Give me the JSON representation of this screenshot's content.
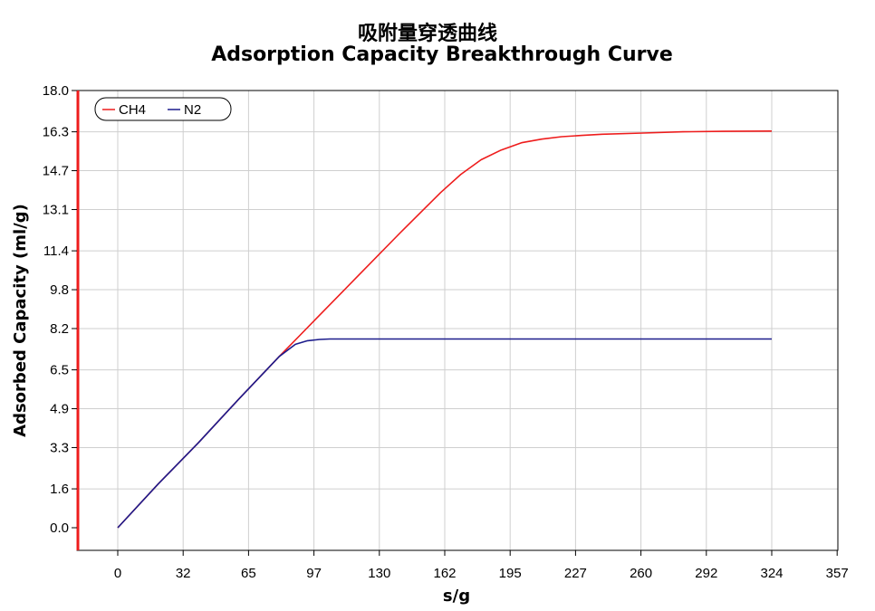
{
  "chart_data": {
    "type": "line",
    "title": "吸附量穿透曲线",
    "subtitle": "Adsorption Capacity Breakthrough Curve",
    "xlabel": "s/g",
    "ylabel": "Adsorbed Capacity (ml/g)",
    "x_ticks": [
      "0",
      "32",
      "65",
      "97",
      "130",
      "162",
      "195",
      "227",
      "260",
      "292",
      "324",
      "357"
    ],
    "y_ticks": [
      "0.0",
      "1.6",
      "3.3",
      "4.9",
      "6.5",
      "8.2",
      "9.8",
      "11.4",
      "13.1",
      "14.7",
      "16.3",
      "18.0"
    ],
    "xlim": [
      -19,
      357
    ],
    "ylim": [
      -1,
      18.0
    ],
    "grid": true,
    "legend_position": "top-left",
    "series": [
      {
        "name": "CH4",
        "color": "#ee1c1c",
        "x": [
          0,
          20,
          40,
          60,
          80,
          90,
          100,
          120,
          140,
          160,
          170,
          180,
          190,
          200,
          210,
          220,
          230,
          240,
          260,
          280,
          300,
          324
        ],
        "y": [
          0,
          1.8,
          3.5,
          5.3,
          7.05,
          7.9,
          8.75,
          10.45,
          12.15,
          13.8,
          14.55,
          15.15,
          15.55,
          15.85,
          16.0,
          16.1,
          16.15,
          16.2,
          16.25,
          16.3,
          16.32,
          16.33
        ]
      },
      {
        "name": "N2",
        "color": "#1c1c8c",
        "x": [
          0,
          20,
          40,
          60,
          80,
          88,
          94,
          100,
          105,
          120,
          160,
          200,
          260,
          324
        ],
        "y": [
          0,
          1.8,
          3.5,
          5.3,
          7.05,
          7.55,
          7.7,
          7.75,
          7.77,
          7.77,
          7.77,
          7.77,
          7.77,
          7.77
        ]
      }
    ]
  }
}
